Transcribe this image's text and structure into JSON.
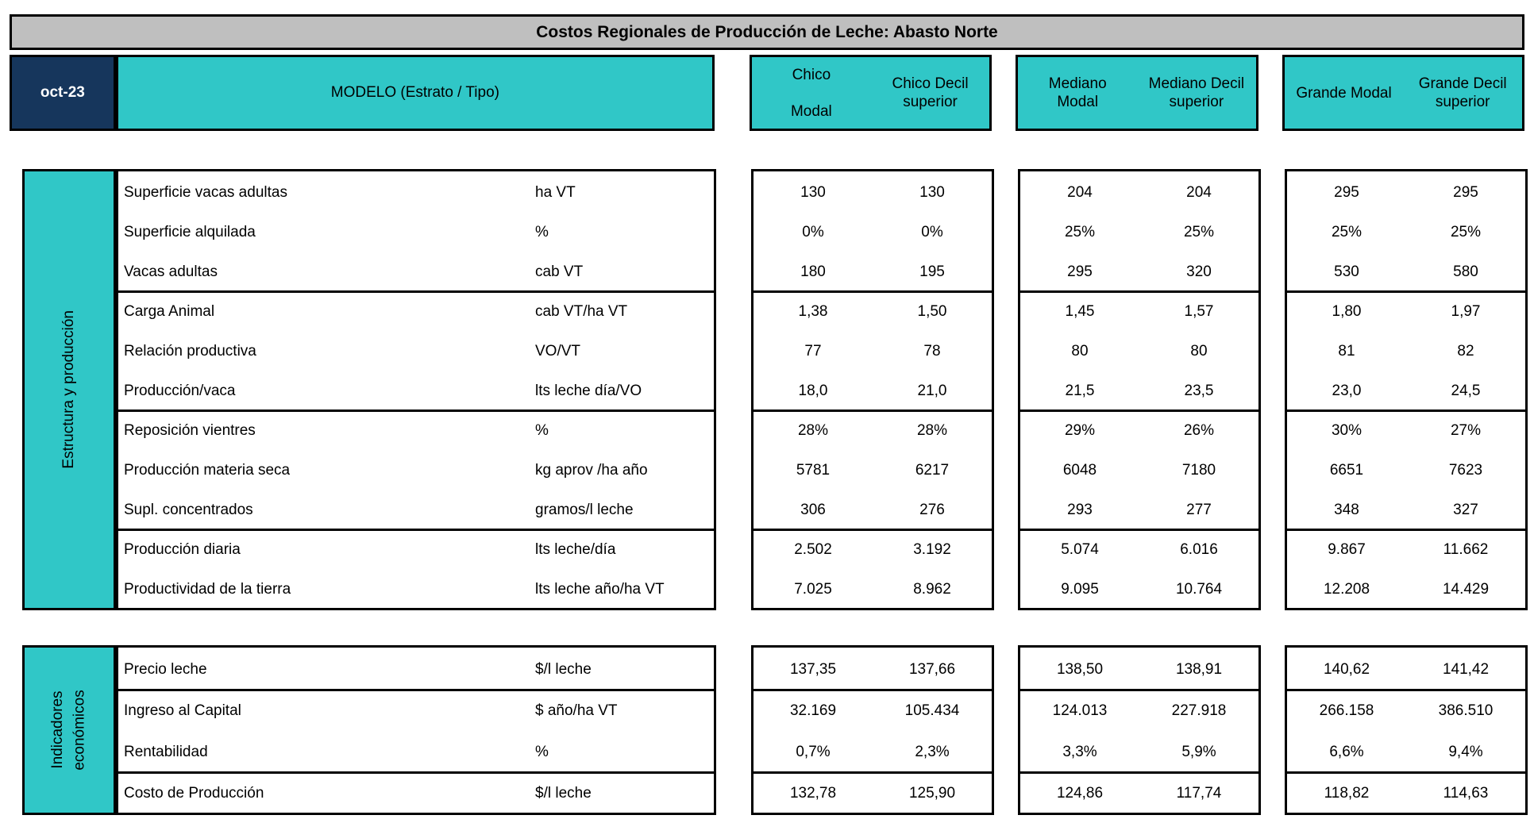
{
  "title": "Costos Regionales de Producción de Leche: Abasto Norte",
  "date_label": "oct-23",
  "model_label": "MODELO (Estrato / Tipo)",
  "colors": {
    "teal": "#30c7c7",
    "navy": "#16365c",
    "title_gray": "#bfbfbf",
    "border": "#000000"
  },
  "column_groups": [
    {
      "name": "chico",
      "cols": [
        {
          "lines": [
            "Chico",
            "",
            "Modal"
          ]
        },
        {
          "lines": [
            "Chico Decil",
            "superior"
          ]
        }
      ]
    },
    {
      "name": "mediano",
      "cols": [
        {
          "lines": [
            "Mediano",
            "Modal"
          ]
        },
        {
          "lines": [
            "Mediano Decil",
            "superior"
          ]
        }
      ]
    },
    {
      "name": "grande",
      "cols": [
        {
          "lines": [
            "Grande Modal"
          ]
        },
        {
          "lines": [
            "Grande Decil",
            "superior"
          ]
        }
      ]
    }
  ],
  "sections": [
    {
      "name": "Estructura y producción",
      "groups": [
        {
          "rows": [
            {
              "label": "Superficie vacas adultas",
              "unit": "ha VT",
              "values": [
                "130",
                "130",
                "204",
                "204",
                "295",
                "295"
              ]
            },
            {
              "label": "Superficie alquilada",
              "unit": "%",
              "values": [
                "0%",
                "0%",
                "25%",
                "25%",
                "25%",
                "25%"
              ]
            },
            {
              "label": "Vacas adultas",
              "unit": "cab VT",
              "values": [
                "180",
                "195",
                "295",
                "320",
                "530",
                "580"
              ]
            }
          ]
        },
        {
          "rows": [
            {
              "label": "Carga Animal",
              "unit": "cab VT/ha VT",
              "values": [
                "1,38",
                "1,50",
                "1,45",
                "1,57",
                "1,80",
                "1,97"
              ]
            },
            {
              "label": "Relación productiva",
              "unit": "VO/VT",
              "values": [
                "77",
                "78",
                "80",
                "80",
                "81",
                "82"
              ]
            },
            {
              "label": "Producción/vaca",
              "unit": "lts leche día/VO",
              "values": [
                "18,0",
                "21,0",
                "21,5",
                "23,5",
                "23,0",
                "24,5"
              ]
            }
          ]
        },
        {
          "rows": [
            {
              "label": "Reposición vientres",
              "unit": "%",
              "values": [
                "28%",
                "28%",
                "29%",
                "26%",
                "30%",
                "27%"
              ]
            },
            {
              "label": "Producción materia seca",
              "unit": "kg aprov /ha año",
              "values": [
                "5781",
                "6217",
                "6048",
                "7180",
                "6651",
                "7623"
              ]
            },
            {
              "label": "Supl. concentrados",
              "unit": "gramos/l leche",
              "values": [
                "306",
                "276",
                "293",
                "277",
                "348",
                "327"
              ]
            }
          ]
        },
        {
          "rows": [
            {
              "label": "Producción diaria",
              "unit": "lts leche/día",
              "values": [
                "2.502",
                "3.192",
                "5.074",
                "6.016",
                "9.867",
                "11.662"
              ]
            },
            {
              "label": "Productividad de la tierra",
              "unit": "lts leche año/ha VT",
              "values": [
                "7.025",
                "8.962",
                "9.095",
                "10.764",
                "12.208",
                "14.429"
              ]
            }
          ]
        }
      ]
    },
    {
      "name": "Indicadores económicos",
      "groups": [
        {
          "rows": [
            {
              "label": "Precio leche",
              "unit": "$/l leche",
              "values": [
                "137,35",
                "137,66",
                "138,50",
                "138,91",
                "140,62",
                "141,42"
              ]
            }
          ]
        },
        {
          "rows": [
            {
              "label": "Ingreso al Capital",
              "unit": "$ año/ha VT",
              "values": [
                "32.169",
                "105.434",
                "124.013",
                "227.918",
                "266.158",
                "386.510"
              ]
            },
            {
              "label": "Rentabilidad",
              "unit": "%",
              "values": [
                "0,7%",
                "2,3%",
                "3,3%",
                "5,9%",
                "6,6%",
                "9,4%"
              ]
            }
          ]
        },
        {
          "rows": [
            {
              "label": "Costo de Producción",
              "unit": "$/l leche",
              "values": [
                "132,78",
                "125,90",
                "124,86",
                "117,74",
                "118,82",
                "114,63"
              ]
            }
          ]
        }
      ]
    }
  ]
}
